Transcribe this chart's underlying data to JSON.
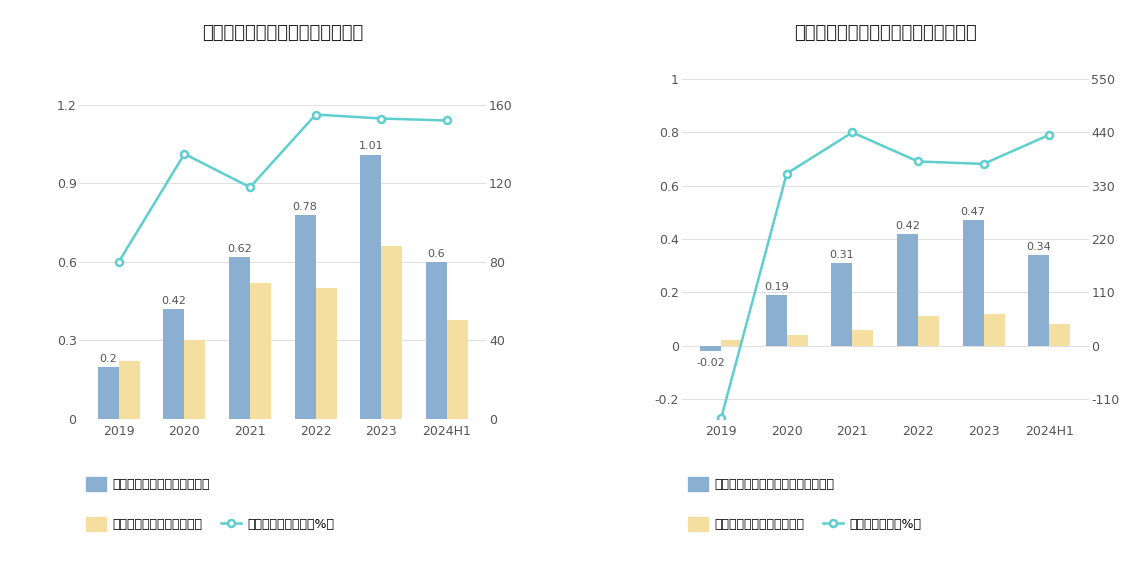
{
  "chart1": {
    "title": "历年经营现金流入、营业收入情况",
    "categories": [
      "2019",
      "2020",
      "2021",
      "2022",
      "2023",
      "2024H1"
    ],
    "bar1_values": [
      0.2,
      0.42,
      0.62,
      0.78,
      1.01,
      0.6
    ],
    "bar2_values": [
      0.22,
      0.3,
      0.52,
      0.5,
      0.66,
      0.38
    ],
    "line_values": [
      80,
      135,
      118,
      155,
      153,
      152
    ],
    "bar1_color": "#8BAFD1",
    "bar2_color": "#F5DFA0",
    "line_color": "#5ECECE",
    "ylim_left": [
      0,
      1.4
    ],
    "ylim_right": [
      0,
      186.67
    ],
    "yticks_left": [
      0,
      0.3,
      0.6,
      0.9,
      1.2
    ],
    "yticks_right": [
      0,
      40,
      80,
      120,
      160
    ],
    "legend1": "左轴：经营现金流入（亿元）",
    "legend2": "左轴：营业总收入（亿元）",
    "legend3": "右轴：营收现金比（%）"
  },
  "chart2": {
    "title": "历年经营现金流净额、归母净利润情况",
    "categories": [
      "2019",
      "2020",
      "2021",
      "2022",
      "2023",
      "2024H1"
    ],
    "bar1_values": [
      -0.02,
      0.19,
      0.31,
      0.42,
      0.47,
      0.34
    ],
    "bar2_values": [
      0.02,
      0.04,
      0.06,
      0.11,
      0.12,
      0.08
    ],
    "line_values": [
      -150,
      355,
      440,
      380,
      375,
      435
    ],
    "bar1_color": "#8BAFD1",
    "bar2_color": "#F5DFA0",
    "line_color": "#5ECECE",
    "ylim_left": [
      -0.275,
      1.1
    ],
    "ylim_right": [
      -151.25,
      605
    ],
    "yticks_left": [
      -0.2,
      0,
      0.2,
      0.4,
      0.6,
      0.8,
      1.0
    ],
    "yticks_right": [
      -110,
      0,
      110,
      220,
      330,
      440,
      550
    ],
    "legend1": "左轴：经营活动现金流净额（亿元）",
    "legend2": "左轴：归母净利润（亿元）",
    "legend3": "右轴：净现比（%）"
  },
  "background_color": "#FFFFFF",
  "grid_color": "#DEDEDE",
  "text_color": "#555555",
  "bar_width": 0.32,
  "fontsize_title": 13,
  "fontsize_tick": 9,
  "fontsize_legend": 9,
  "fontsize_label": 8
}
